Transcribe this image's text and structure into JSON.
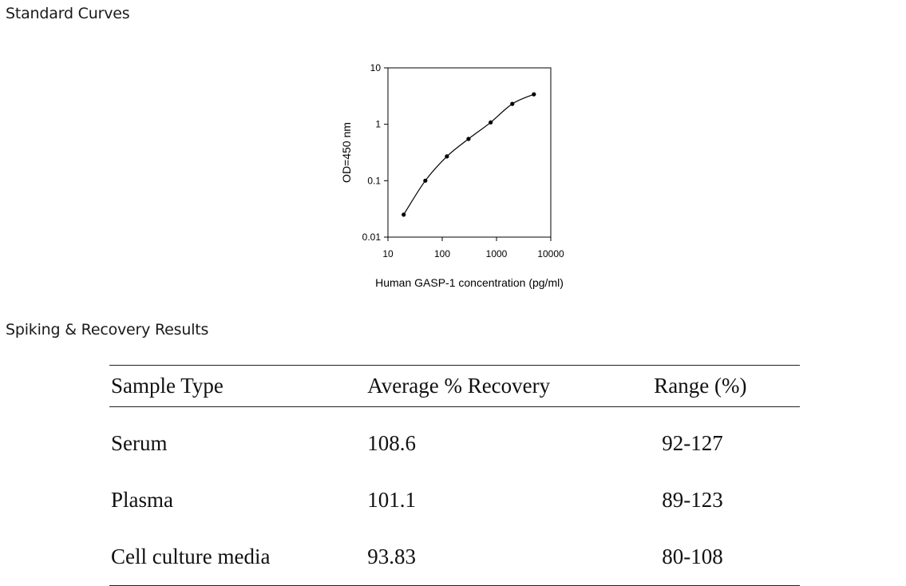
{
  "sections": {
    "standard_curves": "Standard Curves",
    "spiking_recovery": "Spiking & Recovery Results"
  },
  "chart_data": {
    "type": "line",
    "xlabel": "Human GASP-1 concentration (pg/ml)",
    "ylabel": "OD=450 nm",
    "xscale": "log",
    "yscale": "log",
    "xlim": [
      10,
      10000
    ],
    "ylim": [
      0.01,
      10
    ],
    "x_ticks": [
      "10",
      "100",
      "1000",
      "10000"
    ],
    "y_ticks": [
      "10",
      "1",
      "0.1",
      "0.01"
    ],
    "grid": false,
    "series": [
      {
        "x": [
          19.5,
          48.8,
          122,
          305,
          781,
          1953,
          4883
        ],
        "y": [
          0.025,
          0.1,
          0.27,
          0.55,
          1.08,
          2.3,
          3.4
        ]
      }
    ]
  },
  "table": {
    "headers": [
      "Sample Type",
      "Average % Recovery",
      "Range (%)"
    ],
    "rows": [
      [
        "Serum",
        "108.6",
        "92-127"
      ],
      [
        "Plasma",
        "101.1",
        "89-123"
      ],
      [
        "Cell culture media",
        "93.83",
        "80-108"
      ]
    ]
  }
}
